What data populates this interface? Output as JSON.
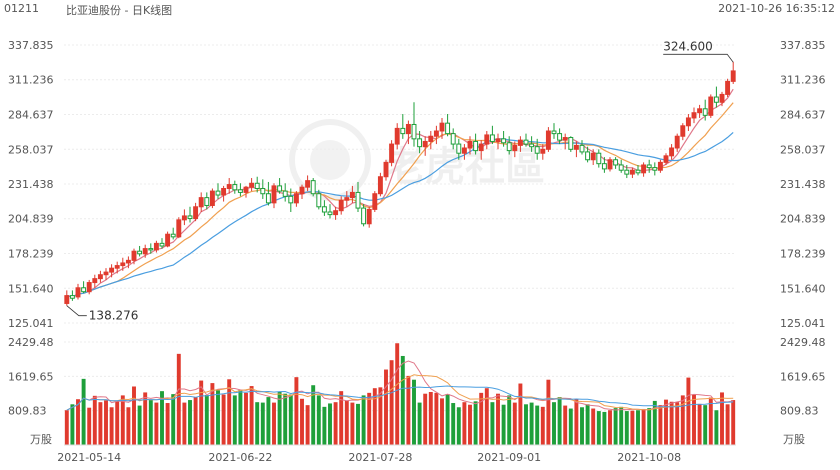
{
  "header": {
    "code": "01211",
    "title": "比亚迪股份 - 日K线图",
    "datetime": "2021-10-26 16:35:12"
  },
  "watermark": "老虎社區",
  "chart_data": [
    {
      "type": "candlestick",
      "y_ticks": [
        "337.835",
        "311.236",
        "284.637",
        "258.037",
        "231.438",
        "204.839",
        "178.239",
        "151.640",
        "125.041"
      ],
      "y_tick_values": [
        337.835,
        311.236,
        284.637,
        258.037,
        231.438,
        204.839,
        178.239,
        151.64,
        125.041
      ],
      "ylim": [
        125.041,
        337.835
      ],
      "x_ticks": [
        "2021-05-14",
        "2021-06-22",
        "2021-07-28",
        "2021-09-01",
        "2021-10-08"
      ],
      "x_tick_index": [
        4,
        31,
        56,
        79,
        104
      ],
      "annotations": {
        "high": "324.600",
        "low": "138.276"
      },
      "high_value": 324.6,
      "low_value": 138.276,
      "up_color": "#e03a2e",
      "down_color": "#1e9f3a",
      "ma_colors": [
        "#e0788a",
        "#f0a050",
        "#4a9ee0"
      ],
      "ohlc": [
        [
          140,
          150,
          138.3,
          146
        ],
        [
          146,
          150,
          142,
          144
        ],
        [
          145,
          155,
          143,
          152
        ],
        [
          152,
          157,
          148,
          149
        ],
        [
          149,
          158,
          147,
          156
        ],
        [
          156,
          162,
          152,
          159
        ],
        [
          159,
          165,
          156,
          162
        ],
        [
          162,
          167,
          158,
          164
        ],
        [
          164,
          170,
          160,
          167
        ],
        [
          167,
          172,
          163,
          169
        ],
        [
          169,
          175,
          165,
          171
        ],
        [
          171,
          176,
          167,
          173
        ],
        [
          173,
          182,
          170,
          180
        ],
        [
          180,
          184,
          176,
          178
        ],
        [
          178,
          185,
          175,
          182
        ],
        [
          182,
          186,
          178,
          181
        ],
        [
          181,
          188,
          179,
          186
        ],
        [
          186,
          190,
          182,
          184
        ],
        [
          184,
          195,
          183,
          193
        ],
        [
          193,
          198,
          189,
          191
        ],
        [
          191,
          206,
          190,
          204
        ],
        [
          204,
          212,
          200,
          207
        ],
        [
          207,
          214,
          202,
          205
        ],
        [
          205,
          217,
          203,
          214
        ],
        [
          214,
          225,
          210,
          221
        ],
        [
          221,
          225,
          212,
          215
        ],
        [
          215,
          228,
          213,
          226
        ],
        [
          226,
          232,
          220,
          223
        ],
        [
          223,
          230,
          218,
          228
        ],
        [
          228,
          236,
          224,
          231
        ],
        [
          231,
          234,
          224,
          227
        ],
        [
          227,
          232,
          222,
          225
        ],
        [
          225,
          230,
          221,
          229
        ],
        [
          229,
          236,
          226,
          232
        ],
        [
          232,
          237,
          225,
          228
        ],
        [
          228,
          235,
          220,
          224
        ],
        [
          224,
          233,
          215,
          217
        ],
        [
          217,
          232,
          213,
          230
        ],
        [
          230,
          236,
          224,
          226
        ],
        [
          226,
          232,
          218,
          222
        ],
        [
          222,
          228,
          210,
          217
        ],
        [
          217,
          226,
          214,
          224
        ],
        [
          224,
          231,
          220,
          229
        ],
        [
          229,
          238,
          226,
          234
        ],
        [
          234,
          236,
          222,
          224
        ],
        [
          224,
          227,
          212,
          214
        ],
        [
          214,
          219,
          207,
          210
        ],
        [
          210,
          216,
          205,
          208
        ],
        [
          208,
          214,
          204,
          211
        ],
        [
          211,
          222,
          208,
          219
        ],
        [
          219,
          226,
          214,
          221
        ],
        [
          221,
          230,
          217,
          225
        ],
        [
          225,
          233,
          210,
          213
        ],
        [
          213,
          216,
          199,
          201
        ],
        [
          201,
          214,
          198,
          212
        ],
        [
          212,
          226,
          210,
          224
        ],
        [
          224,
          240,
          222,
          237
        ],
        [
          237,
          250,
          234,
          248
        ],
        [
          248,
          265,
          245,
          262
        ],
        [
          262,
          278,
          258,
          274
        ],
        [
          274,
          285,
          266,
          270
        ],
        [
          270,
          280,
          262,
          277
        ],
        [
          277,
          294,
          260,
          266
        ],
        [
          266,
          272,
          255,
          260
        ],
        [
          260,
          268,
          253,
          264
        ],
        [
          264,
          272,
          258,
          268
        ],
        [
          268,
          276,
          262,
          272
        ],
        [
          272,
          282,
          266,
          278
        ],
        [
          278,
          285,
          268,
          270
        ],
        [
          270,
          274,
          258,
          262
        ],
        [
          262,
          266,
          250,
          255
        ],
        [
          255,
          262,
          250,
          259
        ],
        [
          259,
          268,
          254,
          264
        ],
        [
          264,
          270,
          254,
          257
        ],
        [
          257,
          265,
          250,
          262
        ],
        [
          262,
          272,
          258,
          269
        ],
        [
          269,
          276,
          262,
          264
        ],
        [
          264,
          270,
          258,
          266
        ],
        [
          266,
          272,
          260,
          263
        ],
        [
          263,
          268,
          254,
          257
        ],
        [
          257,
          264,
          252,
          261
        ],
        [
          261,
          268,
          256,
          265
        ],
        [
          265,
          270,
          260,
          262
        ],
        [
          262,
          268,
          256,
          260
        ],
        [
          260,
          266,
          250,
          255
        ],
        [
          255,
          262,
          250,
          258
        ],
        [
          258,
          275,
          256,
          272
        ],
        [
          272,
          278,
          266,
          270
        ],
        [
          270,
          274,
          262,
          265
        ],
        [
          265,
          270,
          258,
          267
        ],
        [
          267,
          268,
          256,
          258
        ],
        [
          258,
          264,
          252,
          261
        ],
        [
          261,
          265,
          254,
          256
        ],
        [
          256,
          260,
          248,
          250
        ],
        [
          250,
          258,
          246,
          255
        ],
        [
          255,
          258,
          244,
          247
        ],
        [
          247,
          252,
          240,
          243
        ],
        [
          243,
          252,
          241,
          250
        ],
        [
          250,
          252,
          243,
          246
        ],
        [
          246,
          250,
          240,
          242
        ],
        [
          242,
          246,
          236,
          239
        ],
        [
          239,
          244,
          236,
          242
        ],
        [
          242,
          246,
          238,
          240
        ],
        [
          240,
          248,
          237,
          246
        ],
        [
          246,
          250,
          240,
          244
        ],
        [
          244,
          248,
          238,
          242
        ],
        [
          242,
          250,
          240,
          248
        ],
        [
          248,
          255,
          246,
          253
        ],
        [
          253,
          262,
          250,
          259
        ],
        [
          259,
          270,
          256,
          268
        ],
        [
          268,
          278,
          265,
          276
        ],
        [
          276,
          285,
          272,
          282
        ],
        [
          282,
          290,
          278,
          286
        ],
        [
          286,
          292,
          282,
          289
        ],
        [
          289,
          296,
          280,
          284
        ],
        [
          284,
          300,
          282,
          298
        ],
        [
          298,
          306,
          290,
          294
        ],
        [
          294,
          302,
          291,
          300
        ],
        [
          300,
          312,
          298,
          310
        ],
        [
          310,
          325,
          308,
          318
        ]
      ],
      "volume_ticks": [
        "2429.48",
        "1619.65",
        "809.83"
      ],
      "volume_tick_values": [
        2429.48,
        1619.65,
        809.83
      ],
      "volume_unit": "万股",
      "volume_ylim": [
        0,
        2429.48
      ],
      "volume": [
        820,
        960,
        1080,
        1560,
        880,
        1160,
        1010,
        1050,
        890,
        1040,
        1170,
        890,
        1380,
        930,
        1240,
        1060,
        1000,
        1270,
        990,
        1200,
        2150,
        1000,
        1060,
        1130,
        1520,
        1180,
        1460,
        1290,
        1190,
        1550,
        1170,
        1300,
        1230,
        1390,
        1010,
        1000,
        1130,
        1000,
        1250,
        1210,
        1190,
        1600,
        1090,
        940,
        1410,
        1170,
        900,
        980,
        1010,
        1270,
        1050,
        1000,
        970,
        1170,
        1230,
        1340,
        1360,
        1780,
        2000,
        2400,
        2100,
        1630,
        1540,
        1000,
        1210,
        1250,
        1230,
        1100,
        1200,
        990,
        890,
        1010,
        950,
        1030,
        1230,
        1340,
        1010,
        1210,
        950,
        1170,
        1000,
        1450,
        960,
        1000,
        930,
        900,
        1540,
        1010,
        1130,
        930,
        860,
        1080,
        890,
        960,
        860,
        800,
        780,
        820,
        870,
        900,
        800,
        810,
        820,
        850,
        870,
        1040,
        940,
        1070,
        1020,
        1010,
        1170,
        1590,
        1180,
        970,
        940,
        1120,
        820,
        1240,
        960,
        1060
      ]
    }
  ]
}
